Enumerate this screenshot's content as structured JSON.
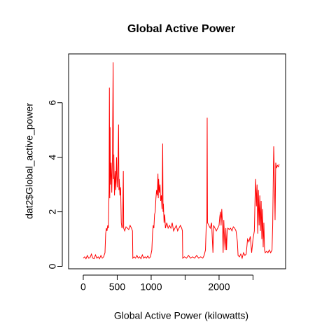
{
  "chart_data": {
    "type": "line",
    "title": "Global Active Power",
    "x_label": "Global Active Power (kilowatts)",
    "y_label": "dat2$Global_active_power",
    "xlim": [
      -216,
      2980
    ],
    "ylim": [
      -0.09,
      7.79
    ],
    "xticks": [
      0,
      500,
      1000,
      {
        "value": 1500,
        "label": null
      },
      2000,
      {
        "value": 2500,
        "label": null
      }
    ],
    "yticks": [
      0,
      2,
      4,
      6
    ],
    "grid": false,
    "x": [
      0,
      20,
      40,
      60,
      80,
      100,
      120,
      140,
      160,
      180,
      200,
      220,
      240,
      260,
      280,
      300,
      320,
      330,
      340,
      350,
      360,
      370,
      380,
      385,
      390,
      395,
      400,
      410,
      420,
      430,
      440,
      445,
      450,
      460,
      470,
      480,
      490,
      500,
      510,
      520,
      525,
      530,
      540,
      550,
      560,
      570,
      580,
      590,
      595,
      610,
      630,
      650,
      670,
      690,
      710,
      725,
      730,
      750,
      770,
      790,
      810,
      830,
      850,
      870,
      890,
      910,
      930,
      950,
      970,
      990,
      1010,
      1020,
      1030,
      1040,
      1050,
      1060,
      1070,
      1080,
      1090,
      1100,
      1105,
      1110,
      1120,
      1130,
      1140,
      1150,
      1160,
      1170,
      1175,
      1180,
      1190,
      1200,
      1210,
      1230,
      1250,
      1270,
      1290,
      1310,
      1330,
      1350,
      1370,
      1390,
      1410,
      1430,
      1450,
      1460,
      1465,
      1490,
      1520,
      1550,
      1580,
      1610,
      1640,
      1670,
      1700,
      1730,
      1760,
      1780,
      1800,
      1810,
      1820,
      1825,
      1830,
      1850,
      1870,
      1890,
      1910,
      1920,
      1940,
      1960,
      1980,
      2000,
      2010,
      2020,
      2030,
      2040,
      2050,
      2060,
      2070,
      2080,
      2090,
      2100,
      2110,
      2120,
      2130,
      2150,
      2170,
      2190,
      2210,
      2230,
      2250,
      2270,
      2280,
      2300,
      2320,
      2340,
      2360,
      2380,
      2400,
      2420,
      2440,
      2460,
      2480,
      2500,
      2520,
      2530,
      2540,
      2550,
      2560,
      2570,
      2580,
      2590,
      2600,
      2610,
      2620,
      2630,
      2640,
      2650,
      2660,
      2670,
      2680,
      2700,
      2720,
      2740,
      2760,
      2780,
      2790,
      2800,
      2805,
      2815,
      2825,
      2835,
      2845,
      2860,
      2875,
      2885
    ],
    "series": [
      {
        "color": "#ff0000",
        "values": [
          0.3,
          0.35,
          0.28,
          0.4,
          0.3,
          0.32,
          0.45,
          0.3,
          0.28,
          0.42,
          0.3,
          0.35,
          0.28,
          0.4,
          0.3,
          0.35,
          0.5,
          1.2,
          1.4,
          1.3,
          1.5,
          1.4,
          2.8,
          6.55,
          2.5,
          5.1,
          3.0,
          3.8,
          2.7,
          4.1,
          7.48,
          3.2,
          4.1,
          2.6,
          3.5,
          2.8,
          4.0,
          2.9,
          3.3,
          5.2,
          2.8,
          3.2,
          2.6,
          2.9,
          1.6,
          1.4,
          1.5,
          3.5,
          1.4,
          1.3,
          1.45,
          1.4,
          1.35,
          1.5,
          1.4,
          1.3,
          0.3,
          0.35,
          0.3,
          0.4,
          0.3,
          0.35,
          0.28,
          0.42,
          0.3,
          0.35,
          0.3,
          0.38,
          0.3,
          0.35,
          0.6,
          1.2,
          1.5,
          1.4,
          1.9,
          2.0,
          2.5,
          2.8,
          2.6,
          3.4,
          2.5,
          3.2,
          2.7,
          3.0,
          2.4,
          2.6,
          2.1,
          4.5,
          2.0,
          2.3,
          1.6,
          1.9,
          1.4,
          1.6,
          1.4,
          1.5,
          1.4,
          1.6,
          1.3,
          1.4,
          1.5,
          1.3,
          1.4,
          1.5,
          1.4,
          1.3,
          0.3,
          0.35,
          0.3,
          0.4,
          0.3,
          0.35,
          0.3,
          0.4,
          0.3,
          0.35,
          0.3,
          0.4,
          0.6,
          1.4,
          1.6,
          5.45,
          1.6,
          1.5,
          1.4,
          1.6,
          0.5,
          1.5,
          1.4,
          1.3,
          1.4,
          1.5,
          1.8,
          2.0,
          1.5,
          2.1,
          1.6,
          0.5,
          1.7,
          1.0,
          0.6,
          1.4,
          0.6,
          1.3,
          1.4,
          1.35,
          1.4,
          1.3,
          1.45,
          1.4,
          1.3,
          0.9,
          0.4,
          0.35,
          0.45,
          0.3,
          0.5,
          0.4,
          0.45,
          1.0,
          0.9,
          1.1,
          0.5,
          1.0,
          1.3,
          2.5,
          3.2,
          2.2,
          3.0,
          1.2,
          2.8,
          1.5,
          2.6,
          1.3,
          2.4,
          1.0,
          2.1,
          0.7,
          1.6,
          0.6,
          0.5,
          0.55,
          0.5,
          0.6,
          0.5,
          0.6,
          1.5,
          3.5,
          4.4,
          3.2,
          1.7,
          3.8,
          3.6,
          3.7,
          3.65,
          3.75
        ]
      }
    ]
  }
}
